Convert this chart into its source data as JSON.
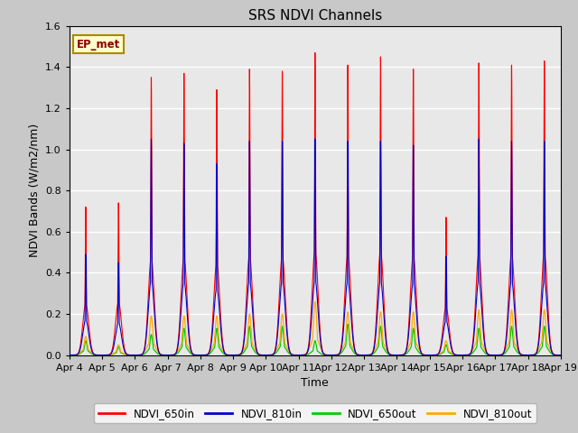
{
  "title": "SRS NDVI Channels",
  "xlabel": "Time",
  "ylabel": "NDVI Bands (W/m2/nm)",
  "annotation": "EP_met",
  "ylim": [
    0,
    1.6
  ],
  "x_tick_labels": [
    "Apr 4",
    "Apr 5",
    "Apr 6",
    "Apr 7",
    "Apr 8",
    "Apr 9",
    "Apr 10",
    "Apr 11",
    "Apr 12",
    "Apr 13",
    "Apr 14",
    "Apr 15",
    "Apr 16",
    "Apr 17",
    "Apr 18",
    "Apr 19"
  ],
  "legend_entries": [
    "NDVI_650in",
    "NDVI_810in",
    "NDVI_650out",
    "NDVI_810out"
  ],
  "legend_colors": [
    "#ff0000",
    "#0000cc",
    "#00cc00",
    "#ffaa00"
  ],
  "day_peaks_650in": [
    0.72,
    0.74,
    1.35,
    1.37,
    1.29,
    1.39,
    1.38,
    1.47,
    1.41,
    1.45,
    1.39,
    0.67,
    1.42,
    1.41,
    1.43
  ],
  "day_peaks_810in": [
    0.49,
    0.45,
    1.05,
    1.03,
    0.93,
    1.04,
    1.04,
    1.05,
    1.04,
    1.04,
    1.02,
    0.48,
    1.05,
    1.04,
    1.04
  ],
  "day_peaks_650out": [
    0.07,
    0.04,
    0.1,
    0.13,
    0.13,
    0.14,
    0.14,
    0.07,
    0.15,
    0.14,
    0.13,
    0.05,
    0.13,
    0.14,
    0.14
  ],
  "day_peaks_810out": [
    0.09,
    0.05,
    0.19,
    0.19,
    0.19,
    0.2,
    0.2,
    0.26,
    0.21,
    0.21,
    0.21,
    0.07,
    0.22,
    0.22,
    0.22
  ],
  "fig_bg": "#c8c8c8",
  "axes_bg": "#e8e8e8"
}
